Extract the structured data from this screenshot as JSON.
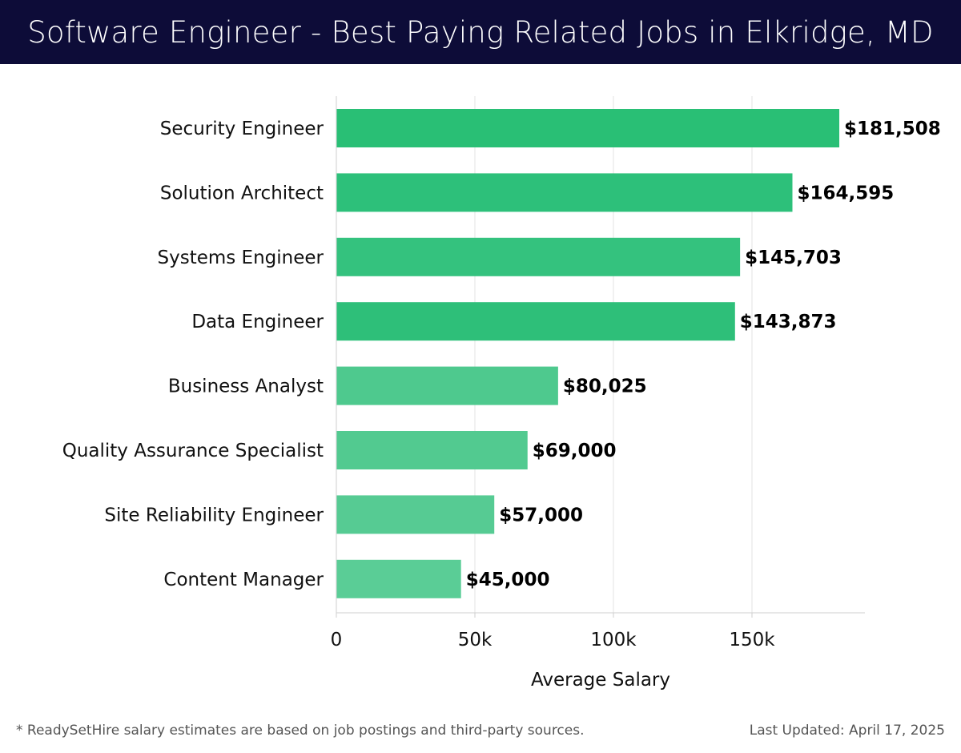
{
  "header": {
    "title": "Software Engineer - Best Paying Related Jobs in Elkridge, MD",
    "background_color": "#0d0c38"
  },
  "chart_data": {
    "type": "bar",
    "orientation": "horizontal",
    "title": "Software Engineer - Best Paying Related Jobs in Elkridge, MD",
    "xlabel": "Average Salary",
    "ylabel": "",
    "xlim": [
      0,
      190000
    ],
    "x_ticks": [
      0,
      50000,
      100000,
      150000
    ],
    "x_tick_labels": [
      "0",
      "50k",
      "100k",
      "150k"
    ],
    "grid": true,
    "categories": [
      "Security Engineer",
      "Solution Architect",
      "Systems Engineer",
      "Data Engineer",
      "Business Analyst",
      "Quality Assurance Specialist",
      "Site Reliability Engineer",
      "Content Manager"
    ],
    "values": [
      181508,
      164595,
      145703,
      143873,
      80025,
      69000,
      57000,
      45000
    ],
    "value_labels": [
      "$181,508",
      "$164,595",
      "$145,703",
      "$143,873",
      "$80,025",
      "$69,000",
      "$57,000",
      "$45,000"
    ],
    "bar_colors": [
      "#29bf75",
      "#2dc07a",
      "#34c27e",
      "#2ebf79",
      "#4ec98e",
      "#52ca90",
      "#56cb93",
      "#5acd96"
    ]
  },
  "footer": {
    "note": "* ReadySetHire salary estimates are based on job postings and third-party sources.",
    "updated": "Last Updated: April 17, 2025"
  }
}
